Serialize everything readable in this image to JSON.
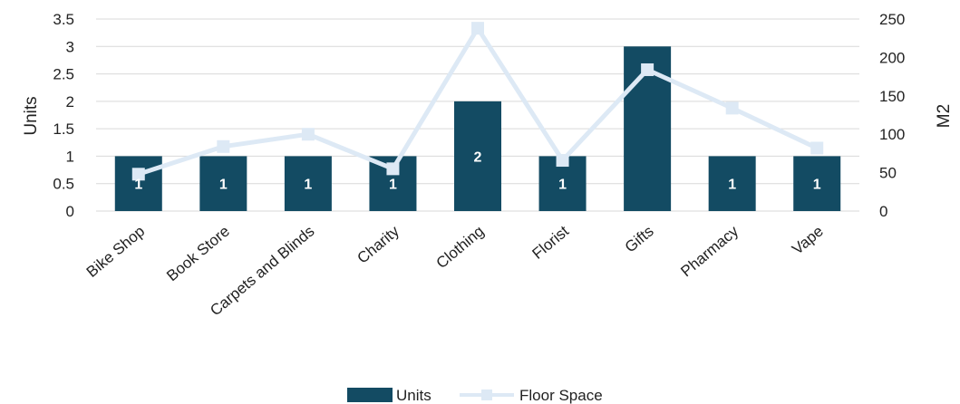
{
  "chart_data": {
    "type": "bar",
    "categories": [
      "Bike Shop",
      "Book Store",
      "Carpets and Blinds",
      "Charity",
      "Clothing",
      "Florist",
      "Gifts",
      "Pharmacy",
      "Vape"
    ],
    "series": [
      {
        "name": "Units",
        "kind": "bar",
        "axis": "left",
        "values": [
          1,
          1,
          1,
          1,
          2,
          1,
          3,
          1,
          1
        ],
        "data_labels": [
          "1",
          "1",
          "1",
          "1",
          "2",
          "1",
          "",
          "1",
          "1"
        ]
      },
      {
        "name": "Floor Space",
        "kind": "line",
        "axis": "right",
        "values": [
          48,
          84,
          100,
          55,
          238,
          66,
          184,
          134,
          82
        ]
      }
    ],
    "ylabel": "Units",
    "ylim": [
      0,
      3.5
    ],
    "yticks": [
      "0",
      "0.5",
      "1",
      "1.5",
      "2",
      "2.5",
      "3",
      "3.5"
    ],
    "y2label": "M2",
    "y2lim": [
      0,
      250
    ],
    "y2ticks": [
      "0",
      "50",
      "100",
      "150",
      "200",
      "250"
    ],
    "grid": true,
    "legend_position": "bottom",
    "colors": {
      "bar": "#134b63",
      "line": "#dde9f5",
      "grid": "#d9d9d9"
    }
  }
}
